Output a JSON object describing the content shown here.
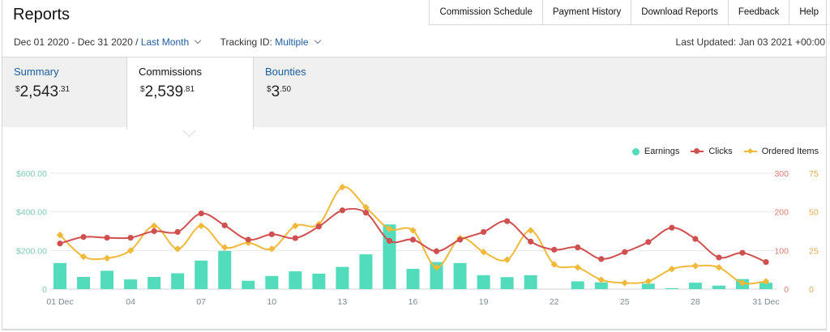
{
  "page": {
    "title": "Reports"
  },
  "topnav": [
    "Commission Schedule",
    "Payment History",
    "Download Reports",
    "Feedback",
    "Help"
  ],
  "filters": {
    "date_range": "Dec 01 2020 - Dec 31 2020 /",
    "period": "Last Month",
    "tracking_label": "Tracking ID:",
    "tracking_value": "Multiple"
  },
  "last_updated": "Last Updated: Jan 03 2021 +00:00",
  "tabs": [
    {
      "label": "Summary",
      "currency": "$",
      "whole": "2,543",
      "cents": ".31",
      "active": false
    },
    {
      "label": "Commissions",
      "currency": "$",
      "whole": "2,539",
      "cents": ".81",
      "active": true
    },
    {
      "label": "Bounties",
      "currency": "$",
      "whole": "3",
      "cents": ".50",
      "active": false
    }
  ],
  "colors": {
    "earnings": "#52dcbb",
    "clicks": "#d04f4f",
    "ordered": "#f0b93a",
    "axis_left": "#7cc9b4",
    "axis_clicks": "#d97a6e",
    "axis_ordered": "#e6a84a"
  },
  "chart_data": {
    "type": "bar+line",
    "legend": [
      "Earnings",
      "Clicks",
      "Ordered Items"
    ],
    "days": [
      1,
      2,
      3,
      4,
      5,
      6,
      7,
      8,
      9,
      10,
      11,
      12,
      13,
      14,
      15,
      16,
      17,
      18,
      19,
      20,
      21,
      22,
      23,
      24,
      25,
      26,
      27,
      28,
      29,
      30,
      31
    ],
    "x_tick_days": [
      1,
      4,
      7,
      10,
      13,
      16,
      19,
      22,
      25,
      28,
      31
    ],
    "x_tick_labels": [
      "01 Dec",
      "04",
      "07",
      "10",
      "13",
      "16",
      "19",
      "22",
      "25",
      "28",
      "31 Dec"
    ],
    "series": [
      {
        "name": "Earnings",
        "axis": "earnings",
        "kind": "bar",
        "values": [
          135,
          63,
          95,
          50,
          63,
          82,
          148,
          198,
          43,
          68,
          92,
          80,
          115,
          180,
          335,
          105,
          140,
          135,
          72,
          62,
          72,
          0,
          40,
          35,
          0,
          28,
          5,
          33,
          18,
          52,
          33
        ]
      },
      {
        "name": "Clicks",
        "axis": "clicks",
        "kind": "line",
        "values": [
          118,
          135,
          133,
          133,
          150,
          148,
          196,
          165,
          128,
          142,
          132,
          162,
          204,
          198,
          125,
          128,
          98,
          128,
          148,
          176,
          123,
          102,
          108,
          78,
          96,
          122,
          159,
          130,
          82,
          94,
          70
        ]
      },
      {
        "name": "Ordered Items",
        "axis": "ordered",
        "kind": "line",
        "values": [
          35,
          21,
          20,
          25,
          41,
          26,
          41,
          27,
          30,
          26,
          41,
          42,
          66,
          53,
          39,
          38,
          14,
          33,
          24,
          19,
          38,
          16,
          14,
          6,
          4,
          5,
          13,
          15,
          14,
          4,
          5
        ]
      }
    ],
    "axes": {
      "earnings": {
        "range": [
          0,
          600
        ],
        "ticks": [
          "0",
          "$200.00",
          "$400.00",
          "$600.00"
        ],
        "tick_values": [
          0,
          200,
          400,
          600
        ]
      },
      "clicks": {
        "range": [
          0,
          300
        ],
        "ticks": [
          "0",
          "100",
          "200",
          "300"
        ],
        "tick_values": [
          0,
          100,
          200,
          300
        ]
      },
      "ordered": {
        "range": [
          0,
          75
        ],
        "ticks": [
          "0",
          "25",
          "50",
          "75"
        ],
        "tick_values": [
          0,
          25,
          50,
          75
        ]
      }
    },
    "grid": true
  }
}
